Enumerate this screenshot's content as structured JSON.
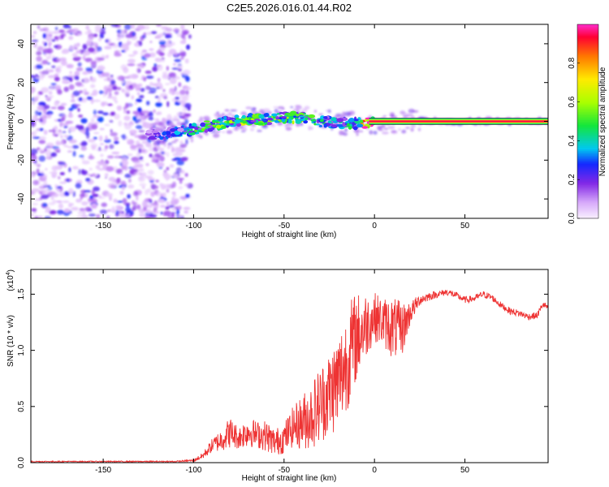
{
  "title": "C2E5.2026.016.01.44.R02",
  "chart_data": [
    {
      "type": "heatmap",
      "title": "C2E5.2026.016.01.44.R02",
      "xlabel": "Height of straight line (km)",
      "ylabel": "Frequency (Hz)",
      "xlim": [
        -190,
        96
      ],
      "ylim": [
        -50,
        50
      ],
      "xticks": [
        -150,
        -100,
        -50,
        0,
        50
      ],
      "xtick_labels": [
        "-150",
        "-100",
        "-50",
        "0",
        "50"
      ],
      "yticks": [
        -40,
        -20,
        0,
        20,
        40
      ],
      "ytick_labels": [
        "-40",
        "-20",
        "0",
        "20",
        "40"
      ],
      "noise_region_x": [
        -190,
        -102
      ],
      "ridge": {
        "x": [
          -125,
          -110,
          -100,
          -90,
          -80,
          -70,
          -60,
          -50,
          -40,
          -30,
          -20,
          -10,
          0,
          10,
          20,
          30,
          40,
          50,
          60,
          70,
          80,
          90,
          96
        ],
        "freq": [
          -7,
          -6,
          -4,
          -2,
          0,
          1,
          1,
          2,
          2,
          0,
          -1,
          -1,
          0,
          0,
          0,
          0,
          0,
          0,
          0,
          0,
          0,
          0,
          0
        ],
        "amplitude": [
          0.15,
          0.2,
          0.3,
          0.35,
          0.35,
          0.4,
          0.35,
          0.35,
          0.35,
          0.3,
          0.25,
          0.3,
          0.95,
          0.95,
          0.95,
          0.95,
          0.95,
          0.95,
          0.95,
          0.95,
          0.95,
          0.95,
          0.95
        ]
      },
      "colorbar": {
        "label": "Normalized spectral amplitude",
        "range": [
          0,
          1
        ],
        "ticks": [
          0,
          0.2,
          0.4,
          0.6,
          0.8
        ],
        "tick_labels": [
          "0.0",
          "0.2",
          "0.4",
          "0.6",
          "0.8"
        ]
      }
    },
    {
      "type": "line",
      "xlabel": "Height of straight line (km)",
      "ylabel": "SNR (10 * v/v)",
      "scale_label": "(x10",
      "scale_exp": "4",
      "scale_close": ")",
      "xlim": [
        -190,
        96
      ],
      "ylim": [
        0,
        1.72
      ],
      "xticks": [
        -150,
        -100,
        -50,
        0,
        50
      ],
      "xtick_labels": [
        "-150",
        "-100",
        "-50",
        "0",
        "50"
      ],
      "yticks": [
        0,
        0.5,
        1.0,
        1.5
      ],
      "ytick_labels": [
        "0.0",
        "0.5",
        "1.0",
        "1.5"
      ],
      "color": "#ee3333",
      "series": [
        {
          "name": "SNR",
          "x": [
            -190,
            -150,
            -110,
            -100,
            -95,
            -90,
            -85,
            -80,
            -75,
            -70,
            -65,
            -60,
            -55,
            -50,
            -45,
            -40,
            -35,
            -30,
            -25,
            -20,
            -15,
            -12,
            -10,
            -5,
            0,
            5,
            10,
            15,
            20,
            25,
            30,
            35,
            40,
            45,
            50,
            55,
            60,
            65,
            70,
            75,
            80,
            85,
            90,
            93,
            96
          ],
          "mean": [
            0.01,
            0.01,
            0.01,
            0.02,
            0.06,
            0.15,
            0.2,
            0.27,
            0.22,
            0.28,
            0.25,
            0.24,
            0.18,
            0.22,
            0.32,
            0.36,
            0.42,
            0.52,
            0.62,
            0.72,
            0.92,
            1.05,
            1.12,
            1.22,
            1.3,
            1.25,
            1.2,
            1.18,
            1.34,
            1.45,
            1.48,
            1.5,
            1.52,
            1.49,
            1.45,
            1.46,
            1.5,
            1.47,
            1.4,
            1.35,
            1.33,
            1.3,
            1.31,
            1.41,
            1.38
          ],
          "amp": [
            0.005,
            0.005,
            0.006,
            0.01,
            0.03,
            0.06,
            0.1,
            0.14,
            0.1,
            0.14,
            0.12,
            0.14,
            0.12,
            0.14,
            0.18,
            0.25,
            0.3,
            0.35,
            0.38,
            0.45,
            0.45,
            0.45,
            0.4,
            0.3,
            0.22,
            0.22,
            0.28,
            0.25,
            0.1,
            0.05,
            0.04,
            0.03,
            0.03,
            0.03,
            0.03,
            0.03,
            0.03,
            0.03,
            0.03,
            0.03,
            0.03,
            0.03,
            0.03,
            0.03,
            0.03
          ]
        }
      ]
    }
  ]
}
